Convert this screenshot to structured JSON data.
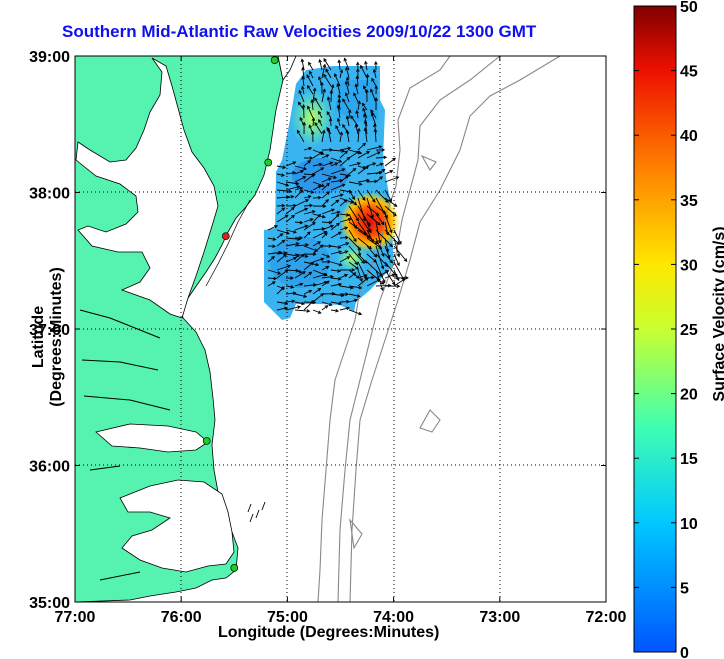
{
  "title": "Southern Mid-Atlantic Raw Velocities 2009/10/22 1300 GMT",
  "xlabel": "Longitude (Degrees:Minutes)",
  "ylabel": "Latitude (Degrees:Minutes)",
  "colorbar": {
    "label": "Surface Velocity (cm/s)",
    "min": 0,
    "max": 50,
    "ticks": [
      "0",
      "5",
      "10",
      "15",
      "20",
      "25",
      "30",
      "35",
      "40",
      "45",
      "50"
    ]
  },
  "map": {
    "lon_range": [
      -77,
      -72
    ],
    "lat_range": [
      35,
      39
    ],
    "x_ticks": [
      "77:00",
      "76:00",
      "75:00",
      "74:00",
      "73:00",
      "72:00"
    ],
    "y_ticks": [
      "35:00",
      "36:00",
      "37:00",
      "38:00",
      "39:00"
    ],
    "grid": true,
    "land_color": "#55f2b0",
    "stations": [
      {
        "lon": -75.12,
        "lat": 38.97,
        "color": "#22cc22"
      },
      {
        "lon": -75.18,
        "lat": 38.22,
        "color": "#22cc22"
      },
      {
        "lon": -75.58,
        "lat": 37.68,
        "color": "#dd2222"
      },
      {
        "lon": -75.76,
        "lat": 36.18,
        "color": "#22cc22"
      },
      {
        "lon": -75.5,
        "lat": 35.25,
        "color": "#22cc22"
      }
    ]
  }
}
